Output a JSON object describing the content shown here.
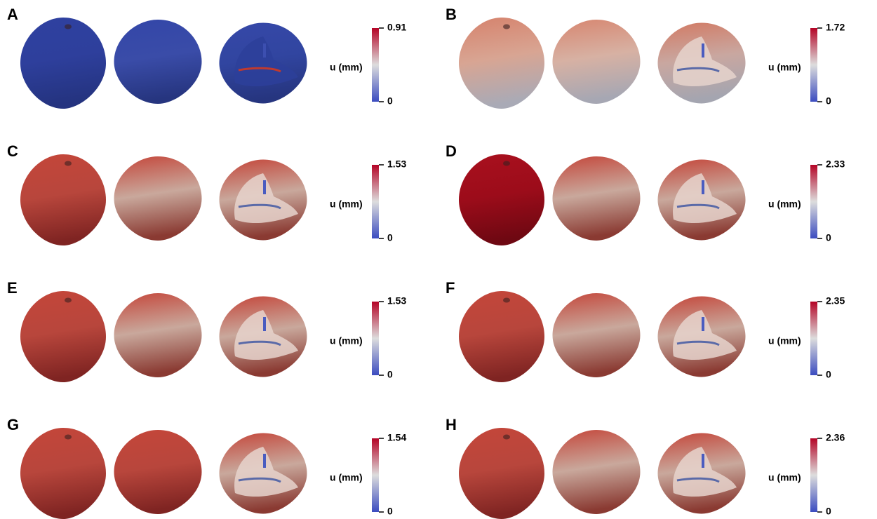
{
  "panels": [
    {
      "label": "A",
      "colorbar": {
        "title": "u (mm)",
        "ticks": [
          0,
          0.91
        ]
      }
    },
    {
      "label": "B",
      "colorbar": {
        "title": "u (mm)",
        "ticks": [
          0,
          1.72
        ]
      }
    },
    {
      "label": "C",
      "colorbar": {
        "title": "u (mm)",
        "ticks": [
          0,
          1.53
        ]
      }
    },
    {
      "label": "D",
      "colorbar": {
        "title": "u (mm)",
        "ticks": [
          0,
          2.33
        ]
      }
    },
    {
      "label": "E",
      "colorbar": {
        "title": "u (mm)",
        "ticks": [
          0,
          1.53
        ]
      }
    },
    {
      "label": "F",
      "colorbar": {
        "title": "u (mm)",
        "ticks": [
          0,
          2.35
        ]
      }
    },
    {
      "label": "G",
      "colorbar": {
        "title": "u (mm)",
        "ticks": [
          0,
          1.54
        ]
      }
    },
    {
      "label": "H",
      "colorbar": {
        "title": "u (mm)",
        "ticks": [
          0,
          2.36
        ]
      }
    }
  ]
}
